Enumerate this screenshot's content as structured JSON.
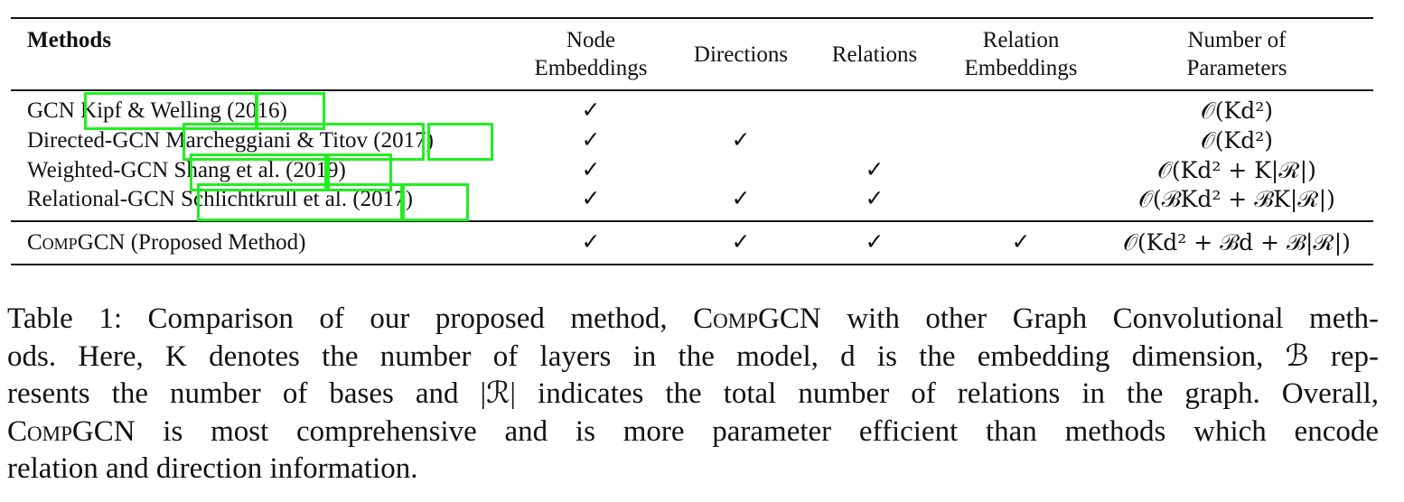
{
  "table": {
    "headers": {
      "methods": "Methods",
      "node_emb_1": "Node",
      "node_emb_2": "Embeddings",
      "directions": "Directions",
      "relations": "Relations",
      "rel_emb_1": "Relation",
      "rel_emb_2": "Embeddings",
      "params_1": "Number of",
      "params_2": "Parameters"
    },
    "rows": [
      {
        "method": "GCN Kipf & Welling (2016)",
        "node": "✓",
        "dir": "",
        "rel": "",
        "relemb": "",
        "params": "𝒪(Kd²)"
      },
      {
        "method": "Directed-GCN Marcheggiani & Titov (2017)",
        "node": "✓",
        "dir": "✓",
        "rel": "",
        "relemb": "",
        "params": "𝒪(Kd²)"
      },
      {
        "method": "Weighted-GCN Shang et al. (2019)",
        "node": "✓",
        "dir": "",
        "rel": "✓",
        "relemb": "",
        "params": "𝒪(Kd² + K|ℛ|)"
      },
      {
        "method": "Relational-GCN Schlichtkrull et al. (2017)",
        "node": "✓",
        "dir": "✓",
        "rel": "✓",
        "relemb": "",
        "params": "𝒪(ℬKd² + ℬK|ℛ|)"
      }
    ],
    "proposed": {
      "method_sc": "CompGCN",
      "method_rest": " (Proposed Method)",
      "node": "✓",
      "dir": "✓",
      "rel": "✓",
      "relemb": "✓",
      "params": "𝒪(Kd² + ℬd + ℬ|ℛ|)"
    }
  },
  "caption": {
    "line1_a": "Table 1: Comparison of our proposed method, ",
    "line1_sc": "CompGCN",
    "line1_b": " with other Graph Convolutional meth-",
    "line2": "ods.  Here, K denotes the number of layers in the model, d is the embedding dimension, ℬ rep-",
    "line3": "resents the number of bases and |ℛ| indicates the total number of relations in the graph.  Overall,",
    "line4_sc": "CompGCN",
    "line4_b": " is most comprehensive and is more parameter efficient than methods which encode",
    "line5": "relation and direction information."
  },
  "colors": {
    "citation_box": "#22ee22",
    "text": "#111111"
  }
}
